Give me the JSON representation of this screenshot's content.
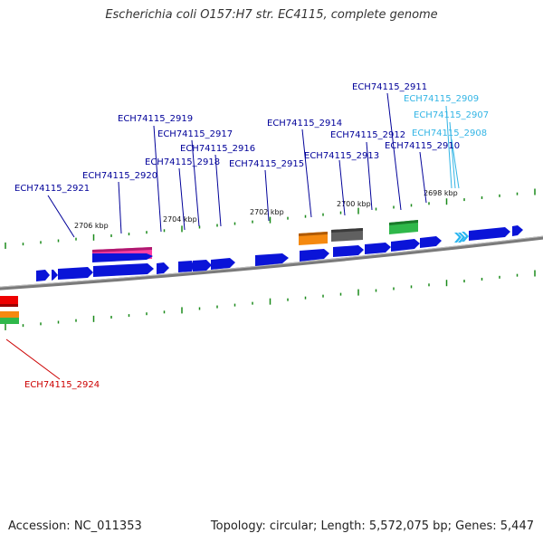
{
  "title": "Escherichia coli O157:H7 str. EC4115, complete genome",
  "accession": "Accession: NC_011353",
  "stats": "Topology: circular; Length: 5,572,075 bp; Genes: 5,447",
  "colors": {
    "cds": "#0a14d8",
    "trna": "#ff3fa4",
    "rrna": "#f5890f",
    "misc": "#606060",
    "other": "#2fb84a",
    "repeat": "#2ab6f0",
    "red_feature": "#ee0000",
    "label_dark": "#000099",
    "label_light": "#33b5e5",
    "label_red": "#cc0000",
    "backbone": "#808080",
    "tick": "#1a8a1a"
  },
  "kbp_labels": [
    "2706 kbp",
    "2704 kbp",
    "2702 kbp",
    "2700 kbp",
    "2698 kbp"
  ],
  "gene_labels": [
    {
      "text": "ECH74115_2911",
      "style": "dark"
    },
    {
      "text": "ECH74115_2909",
      "style": "light"
    },
    {
      "text": "ECH74115_2907",
      "style": "light"
    },
    {
      "text": "ECH74115_2908",
      "style": "light"
    },
    {
      "text": "ECH74115_2919",
      "style": "dark"
    },
    {
      "text": "ECH74115_2914",
      "style": "dark"
    },
    {
      "text": "ECH74115_2917",
      "style": "dark"
    },
    {
      "text": "ECH74115_2912",
      "style": "dark"
    },
    {
      "text": "ECH74115_2916",
      "style": "dark"
    },
    {
      "text": "ECH74115_2910",
      "style": "dark"
    },
    {
      "text": "ECH74115_2918",
      "style": "dark"
    },
    {
      "text": "ECH74115_2913",
      "style": "dark"
    },
    {
      "text": "ECH74115_2915",
      "style": "dark"
    },
    {
      "text": "ECH74115_2920",
      "style": "dark"
    },
    {
      "text": "ECH74115_2921",
      "style": "dark"
    },
    {
      "text": "ECH74115_2924",
      "style": "red"
    }
  ]
}
